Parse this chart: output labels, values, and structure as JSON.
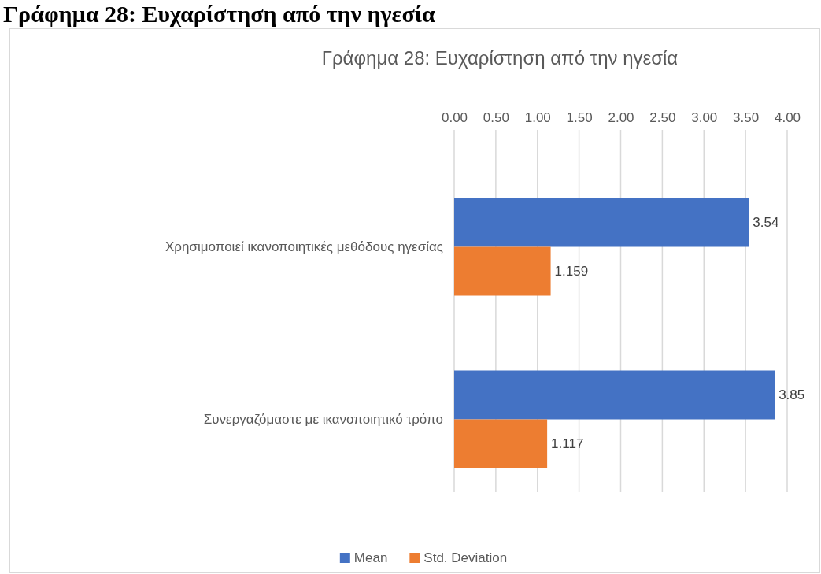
{
  "chart_data": {
    "type": "bar",
    "title": "Γράφημα 28: Ευχαρίστηση από την ηγεσία",
    "annotations": [
      "Γράφημα 28: Ευχαρίστηση από την ηγεσία"
    ],
    "orientation": "horizontal",
    "categories": [
      "Χρησιμοποιεί ικανοποιητικές μεθόδους ηγεσίας",
      "Συνεργαζόμαστε με ικανοποιητικό τρόπο"
    ],
    "series": [
      {
        "name": "Mean",
        "color": "#4472c4",
        "values": [
          3.54,
          3.85
        ]
      },
      {
        "name": "Std. Deviation",
        "color": "#ed7d31",
        "values": [
          1.159,
          1.117
        ]
      }
    ],
    "xlim": [
      0,
      4
    ],
    "xticks": [
      {
        "value": 0,
        "label": "0.00"
      },
      {
        "value": 0.5,
        "label": "0.50"
      },
      {
        "value": 1,
        "label": "1.00"
      },
      {
        "value": 1.5,
        "label": "1.50"
      },
      {
        "value": 2,
        "label": "2.00"
      },
      {
        "value": 2.5,
        "label": "2.50"
      },
      {
        "value": 3,
        "label": "3.00"
      },
      {
        "value": 3.5,
        "label": "3.50"
      },
      {
        "value": 4,
        "label": "4.00"
      }
    ],
    "grid": "x",
    "legend": "bottom",
    "data_labels": true
  }
}
